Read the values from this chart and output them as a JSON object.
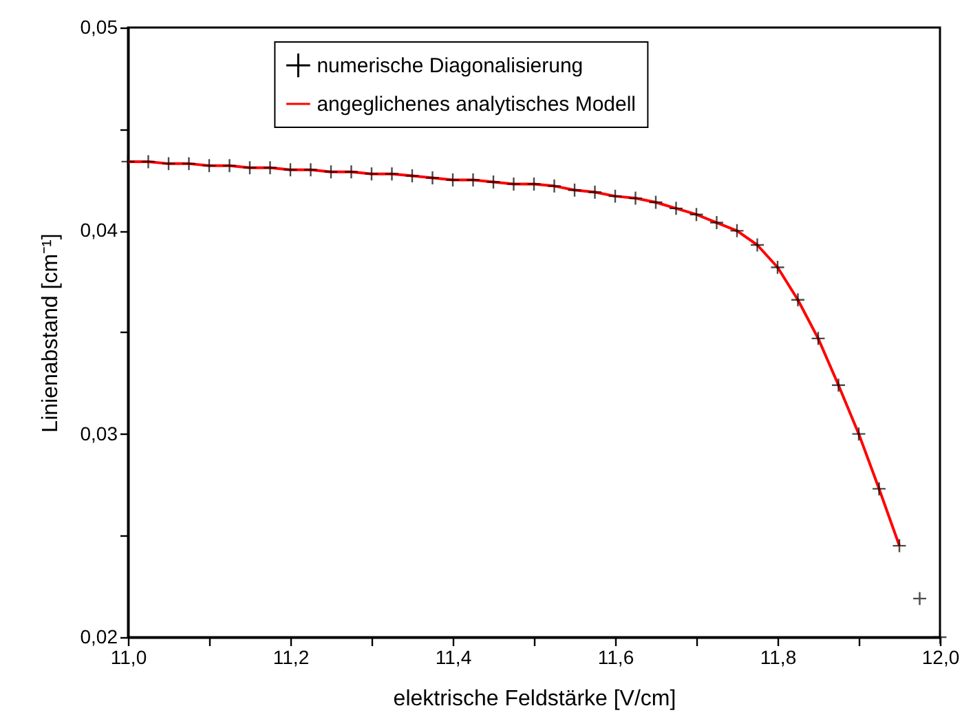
{
  "chart_data": {
    "type": "scatter",
    "xlabel": "elektrische Feldstärke [V/cm]",
    "ylabel": "Linienabstand [cm⁻¹]",
    "xlim": [
      11.0,
      12.0
    ],
    "ylim": [
      0.02,
      0.05
    ],
    "xticks": [
      {
        "value": 11.0,
        "label": "11,0"
      },
      {
        "value": 11.1,
        "label": null
      },
      {
        "value": 11.2,
        "label": "11,2"
      },
      {
        "value": 11.3,
        "label": null
      },
      {
        "value": 11.4,
        "label": "11,4"
      },
      {
        "value": 11.5,
        "label": null
      },
      {
        "value": 11.6,
        "label": "11,6"
      },
      {
        "value": 11.7,
        "label": null
      },
      {
        "value": 11.8,
        "label": "11,8"
      },
      {
        "value": 11.9,
        "label": null
      },
      {
        "value": 12.0,
        "label": "12,0"
      }
    ],
    "yticks": [
      {
        "value": 0.02,
        "label": "0,02"
      },
      {
        "value": 0.025,
        "label": null
      },
      {
        "value": 0.03,
        "label": "0,03"
      },
      {
        "value": 0.035,
        "label": null
      },
      {
        "value": 0.04,
        "label": "0,04"
      },
      {
        "value": 0.045,
        "label": null
      },
      {
        "value": 0.05,
        "label": "0,05"
      }
    ],
    "grid": false,
    "legend": "top",
    "series": [
      {
        "name": "numerische Diagonalisierung",
        "marker": "cross",
        "color": "#000000",
        "x": [
          11.0,
          11.025,
          11.05,
          11.075,
          11.1,
          11.125,
          11.15,
          11.175,
          11.2,
          11.225,
          11.25,
          11.275,
          11.3,
          11.325,
          11.35,
          11.375,
          11.4,
          11.425,
          11.45,
          11.475,
          11.5,
          11.525,
          11.55,
          11.575,
          11.6,
          11.625,
          11.65,
          11.675,
          11.7,
          11.725,
          11.75,
          11.775,
          11.8,
          11.825,
          11.85,
          11.875,
          11.9,
          11.925,
          11.95,
          11.975,
          12.0
        ],
        "values": [
          0.0434,
          0.0434,
          0.0433,
          0.0433,
          0.0432,
          0.0432,
          0.0431,
          0.0431,
          0.043,
          0.043,
          0.0429,
          0.0429,
          0.0428,
          0.0428,
          0.0427,
          0.0426,
          0.0425,
          0.0425,
          0.0424,
          0.0423,
          0.0423,
          0.0422,
          0.042,
          0.0419,
          0.0417,
          0.0416,
          0.0414,
          0.0411,
          0.0408,
          0.0404,
          0.04,
          0.0393,
          0.0382,
          0.0366,
          0.0347,
          0.0324,
          0.03,
          0.0273,
          0.0245,
          0.0219,
          0.02
        ]
      },
      {
        "name": "angeglichenes analytisches Modell",
        "type": "line",
        "marker": "none",
        "line_style": "solid",
        "color": "#ff0000",
        "x": [
          11.0,
          11.025,
          11.05,
          11.075,
          11.1,
          11.125,
          11.15,
          11.175,
          11.2,
          11.225,
          11.25,
          11.275,
          11.3,
          11.325,
          11.35,
          11.375,
          11.4,
          11.425,
          11.45,
          11.475,
          11.5,
          11.525,
          11.55,
          11.575,
          11.6,
          11.625,
          11.65,
          11.675,
          11.7,
          11.725,
          11.75,
          11.775,
          11.8,
          11.825,
          11.85,
          11.875,
          11.9,
          11.925,
          11.95
        ],
        "values": [
          0.0434,
          0.0434,
          0.0433,
          0.0433,
          0.0432,
          0.0432,
          0.0431,
          0.0431,
          0.043,
          0.043,
          0.0429,
          0.0429,
          0.0428,
          0.0428,
          0.0427,
          0.0426,
          0.0425,
          0.0425,
          0.0424,
          0.0423,
          0.0423,
          0.0422,
          0.042,
          0.0419,
          0.0417,
          0.0416,
          0.0414,
          0.0411,
          0.0408,
          0.0404,
          0.04,
          0.0393,
          0.0382,
          0.0366,
          0.0347,
          0.0324,
          0.03,
          0.0273,
          0.0245
        ]
      }
    ]
  }
}
